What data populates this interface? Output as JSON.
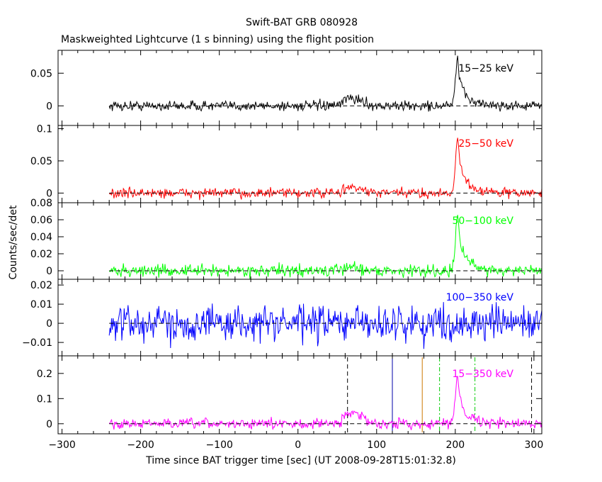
{
  "chart_data": {
    "type": "line",
    "title": "Swift-BAT GRB 080928",
    "subtitle": "Maskweighted Lightcurve (1 s binning) using the flight position",
    "xlabel": "Time since BAT trigger time [sec] (UT 2008-09-28T15:01:32.8)",
    "ylabel": "Counts/sec/det",
    "xlim": [
      -305,
      310
    ],
    "x_ticks": [
      -300,
      -200,
      -100,
      0,
      100,
      200,
      300
    ],
    "x_tick_labels": [
      "−300",
      "−200",
      "−100",
      "0",
      "100",
      "200",
      "300"
    ],
    "data_range": [
      -240,
      310
    ],
    "grid": false,
    "panels": [
      {
        "name": "15−25 keV",
        "color": "#000000",
        "ylim": [
          -0.03,
          0.085
        ],
        "y_ticks": [
          0,
          0.05
        ],
        "y_tick_labels": [
          "0",
          "0.05"
        ],
        "noise": 0.0055,
        "peak": 0.07,
        "peak_time": 203,
        "hump": 0.008
      },
      {
        "name": "25−50 keV",
        "color": "#ff0000",
        "ylim": [
          -0.015,
          0.105
        ],
        "y_ticks": [
          0,
          0.05,
          0.1
        ],
        "y_tick_labels": [
          "0",
          "0.05",
          "0.1"
        ],
        "noise": 0.0055,
        "peak": 0.085,
        "peak_time": 203,
        "hump": 0.006
      },
      {
        "name": "50−100 keV",
        "color": "#00ff00",
        "ylim": [
          -0.01,
          0.08
        ],
        "y_ticks": [
          0,
          0.02,
          0.04,
          0.06,
          0.08
        ],
        "y_tick_labels": [
          "0",
          "0.02",
          "0.04",
          "0.06",
          "0.08"
        ],
        "noise": 0.005,
        "peak": 0.065,
        "peak_time": 203,
        "hump": 0.003
      },
      {
        "name": "100−350 keV",
        "color": "#0000ff",
        "ylim": [
          -0.017,
          0.023
        ],
        "y_ticks": [
          -0.01,
          0,
          0.01,
          0.02
        ],
        "y_tick_labels": [
          "−0.01",
          "0",
          "0.01",
          "0.02"
        ],
        "noise": 0.0065,
        "peak": 0.0,
        "peak_time": 203,
        "hump": 0.0
      },
      {
        "name": "15−350 keV",
        "color": "#ff00ff",
        "ylim": [
          -0.04,
          0.27
        ],
        "y_ticks": [
          0,
          0.1,
          0.2
        ],
        "y_tick_labels": [
          "0",
          "0.1",
          "0.2"
        ],
        "noise": 0.014,
        "peak": 0.2,
        "peak_time": 203,
        "hump": 0.03,
        "markers": [
          {
            "x": 63,
            "color": "#000000",
            "style": "dashed"
          },
          {
            "x": 120,
            "color": "#0000aa",
            "style": "solid"
          },
          {
            "x": 158,
            "color": "#cc7700",
            "style": "solid"
          },
          {
            "x": 180,
            "color": "#00cc00",
            "style": "dashdot"
          },
          {
            "x": 225,
            "color": "#00cc00",
            "style": "dashdot"
          },
          {
            "x": 297,
            "color": "#000000",
            "style": "dashed"
          }
        ]
      }
    ]
  }
}
